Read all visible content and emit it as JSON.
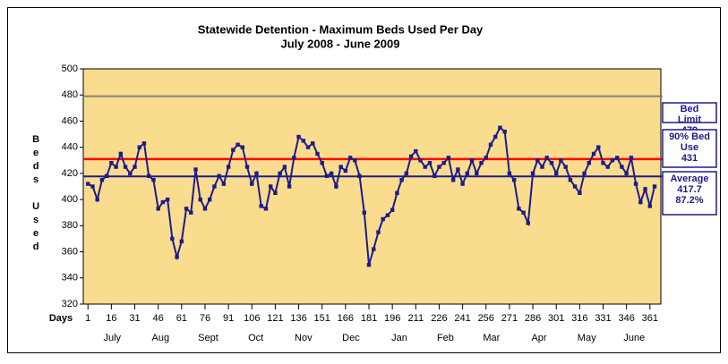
{
  "chart_data": {
    "type": "line",
    "title": "Statewide Detention - Maximum Beds Used Per Day",
    "subtitle": "July 2008 - June 2009",
    "xlabel": "Days",
    "ylabel": "Beds Used",
    "x": [
      1,
      4,
      7,
      10,
      13,
      16,
      19,
      22,
      25,
      28,
      31,
      34,
      37,
      40,
      43,
      46,
      49,
      52,
      55,
      58,
      61,
      64,
      67,
      70,
      73,
      76,
      79,
      82,
      85,
      88,
      91,
      94,
      97,
      100,
      103,
      106,
      109,
      112,
      115,
      118,
      121,
      124,
      127,
      130,
      133,
      136,
      139,
      142,
      145,
      148,
      151,
      154,
      157,
      160,
      163,
      166,
      169,
      172,
      175,
      178,
      181,
      184,
      187,
      190,
      193,
      196,
      199,
      202,
      205,
      208,
      211,
      214,
      217,
      220,
      223,
      226,
      229,
      232,
      235,
      238,
      241,
      244,
      247,
      250,
      253,
      256,
      259,
      262,
      265,
      268,
      271,
      274,
      277,
      280,
      283,
      286,
      289,
      292,
      295,
      298,
      301,
      304,
      307,
      310,
      313,
      316,
      319,
      322,
      325,
      328,
      331,
      334,
      337,
      340,
      343,
      346,
      349,
      352,
      355,
      358,
      361,
      364
    ],
    "series": [
      {
        "name": "Maximum Beds Used",
        "color": "#1c1c8a",
        "values": [
          412,
          410,
          400,
          415,
          418,
          428,
          425,
          435,
          425,
          420,
          425,
          440,
          443,
          418,
          415,
          393,
          398,
          400,
          370,
          356,
          368,
          393,
          390,
          423,
          400,
          393,
          400,
          410,
          418,
          412,
          425,
          438,
          442,
          440,
          425,
          412,
          420,
          395,
          393,
          410,
          405,
          420,
          425,
          410,
          432,
          448,
          445,
          440,
          443,
          435,
          428,
          418,
          420,
          410,
          425,
          422,
          432,
          430,
          418,
          390,
          350,
          362,
          375,
          385,
          388,
          392,
          405,
          415,
          420,
          433,
          437,
          430,
          425,
          428,
          418,
          425,
          428,
          432,
          415,
          423,
          412,
          420,
          430,
          420,
          428,
          432,
          442,
          448,
          455,
          452,
          420,
          415,
          393,
          390,
          382,
          420,
          430,
          425,
          432,
          428,
          420,
          430,
          425,
          415,
          410,
          405,
          420,
          428,
          435,
          440,
          428,
          425,
          430,
          432,
          425,
          420,
          432,
          412,
          398,
          408,
          395,
          410
        ]
      }
    ],
    "reference_lines": [
      {
        "name": "Bed Limit",
        "value": 479,
        "color": "#808080"
      },
      {
        "name": "90% Bed Use",
        "value": 431,
        "color": "#ff0000"
      },
      {
        "name": "Average",
        "value": 417.7,
        "color": "#1c1c8a",
        "note": "87.2%"
      }
    ],
    "months": [
      "July",
      "Aug",
      "Sept",
      "Oct",
      "Nov",
      "Dec",
      "Jan",
      "Feb",
      "Mar",
      "Apr",
      "May",
      "June"
    ],
    "xlim": [
      -2,
      368
    ],
    "xticks": [
      1,
      16,
      31,
      46,
      61,
      76,
      91,
      106,
      121,
      136,
      151,
      166,
      181,
      196,
      211,
      226,
      241,
      256,
      271,
      286,
      301,
      316,
      331,
      346,
      361
    ],
    "ylim": [
      320,
      500
    ],
    "yticks": [
      320,
      340,
      360,
      380,
      400,
      420,
      440,
      460,
      480,
      500
    ],
    "grid": false,
    "plot_background": "#f9dc8e"
  }
}
